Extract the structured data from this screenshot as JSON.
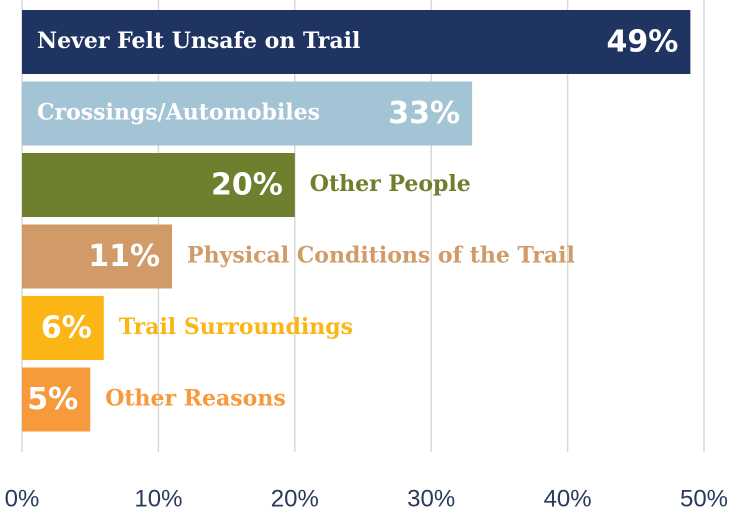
{
  "chart_data": {
    "type": "bar",
    "orientation": "horizontal",
    "categories": [
      "Never Felt Unsafe on Trail",
      "Crossings/Automobiles",
      "Other People",
      "Physical Conditions of the Trail",
      "Trail Surroundings",
      "Other Reasons"
    ],
    "values": [
      49,
      33,
      20,
      11,
      6,
      5
    ],
    "value_labels": [
      "49%",
      "33%",
      "20%",
      "11%",
      "6%",
      "5%"
    ],
    "colors": [
      "#1f3461",
      "#a3c4d4",
      "#6e7f2e",
      "#d09b68",
      "#fbb616",
      "#f79a3b"
    ],
    "xlim": [
      0,
      50
    ],
    "xticks": [
      {
        "value": 0,
        "label": "0%"
      },
      {
        "value": 10,
        "label": "10%"
      },
      {
        "value": 20,
        "label": "20%"
      },
      {
        "value": 30,
        "label": "30%"
      },
      {
        "value": 40,
        "label": "40%"
      },
      {
        "value": 50,
        "label": "50%"
      }
    ],
    "grid": true
  }
}
